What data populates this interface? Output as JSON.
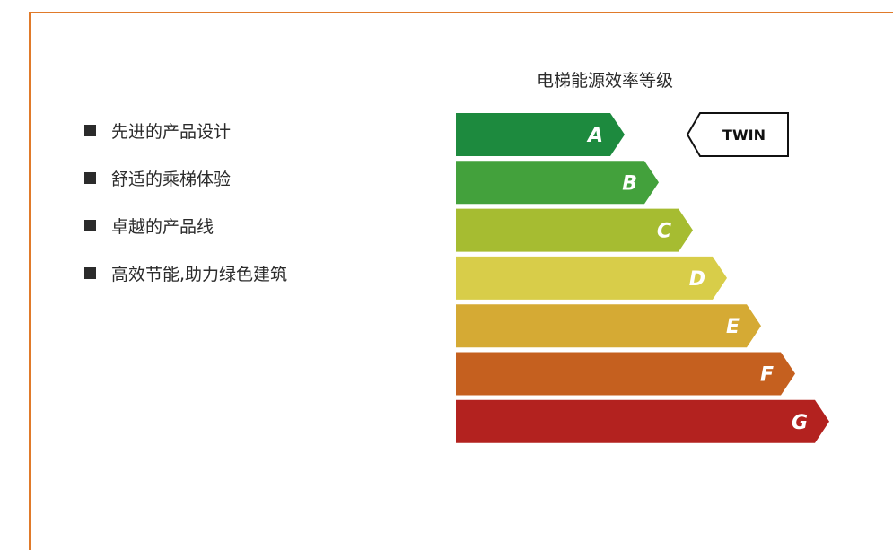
{
  "features": [
    "先进的产品设计",
    "舒适的乘梯体验",
    "卓越的产品线",
    "高效节能,助力绿色建筑"
  ],
  "chart_data": {
    "type": "bar",
    "title": "电梯能源效率等级",
    "categories": [
      "A",
      "B",
      "C",
      "D",
      "E",
      "F",
      "G"
    ],
    "values": [
      1,
      2,
      3,
      4,
      5,
      6,
      7
    ],
    "colors": [
      "#1d8a3e",
      "#43a13c",
      "#a6bc31",
      "#d8cd49",
      "#d5aa34",
      "#c5601f",
      "#b3221f"
    ],
    "indicator": {
      "label": "TWIN",
      "category": "A"
    }
  },
  "colors": {
    "frame": "#e07a2a"
  }
}
